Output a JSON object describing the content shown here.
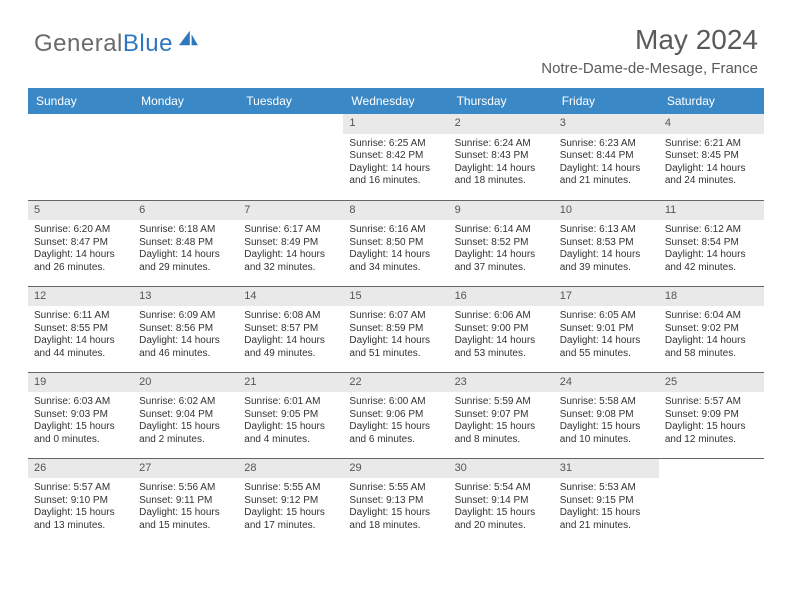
{
  "brand": {
    "part1": "General",
    "part2": "Blue"
  },
  "title": "May 2024",
  "subtitle": "Notre-Dame-de-Mesage, France",
  "colors": {
    "header_bg": "#3b88c6",
    "header_fg": "#ffffff",
    "daynum_bg": "#e9e9e9",
    "daynum_fg": "#555555",
    "body_fg": "#333333",
    "rule": "#666666",
    "brand_gray": "#6b6b6b",
    "brand_blue": "#2f78bd",
    "title_fg": "#5a5a5a"
  },
  "typography": {
    "title_fontsize": 28,
    "subtitle_fontsize": 15,
    "header_fontsize": 12,
    "daynum_fontsize": 11,
    "body_fontsize": 10
  },
  "weekdays": [
    "Sunday",
    "Monday",
    "Tuesday",
    "Wednesday",
    "Thursday",
    "Friday",
    "Saturday"
  ],
  "weeks": [
    [
      null,
      null,
      null,
      {
        "n": "1",
        "l1": "Sunrise: 6:25 AM",
        "l2": "Sunset: 8:42 PM",
        "l3": "Daylight: 14 hours",
        "l4": "and 16 minutes."
      },
      {
        "n": "2",
        "l1": "Sunrise: 6:24 AM",
        "l2": "Sunset: 8:43 PM",
        "l3": "Daylight: 14 hours",
        "l4": "and 18 minutes."
      },
      {
        "n": "3",
        "l1": "Sunrise: 6:23 AM",
        "l2": "Sunset: 8:44 PM",
        "l3": "Daylight: 14 hours",
        "l4": "and 21 minutes."
      },
      {
        "n": "4",
        "l1": "Sunrise: 6:21 AM",
        "l2": "Sunset: 8:45 PM",
        "l3": "Daylight: 14 hours",
        "l4": "and 24 minutes."
      }
    ],
    [
      {
        "n": "5",
        "l1": "Sunrise: 6:20 AM",
        "l2": "Sunset: 8:47 PM",
        "l3": "Daylight: 14 hours",
        "l4": "and 26 minutes."
      },
      {
        "n": "6",
        "l1": "Sunrise: 6:18 AM",
        "l2": "Sunset: 8:48 PM",
        "l3": "Daylight: 14 hours",
        "l4": "and 29 minutes."
      },
      {
        "n": "7",
        "l1": "Sunrise: 6:17 AM",
        "l2": "Sunset: 8:49 PM",
        "l3": "Daylight: 14 hours",
        "l4": "and 32 minutes."
      },
      {
        "n": "8",
        "l1": "Sunrise: 6:16 AM",
        "l2": "Sunset: 8:50 PM",
        "l3": "Daylight: 14 hours",
        "l4": "and 34 minutes."
      },
      {
        "n": "9",
        "l1": "Sunrise: 6:14 AM",
        "l2": "Sunset: 8:52 PM",
        "l3": "Daylight: 14 hours",
        "l4": "and 37 minutes."
      },
      {
        "n": "10",
        "l1": "Sunrise: 6:13 AM",
        "l2": "Sunset: 8:53 PM",
        "l3": "Daylight: 14 hours",
        "l4": "and 39 minutes."
      },
      {
        "n": "11",
        "l1": "Sunrise: 6:12 AM",
        "l2": "Sunset: 8:54 PM",
        "l3": "Daylight: 14 hours",
        "l4": "and 42 minutes."
      }
    ],
    [
      {
        "n": "12",
        "l1": "Sunrise: 6:11 AM",
        "l2": "Sunset: 8:55 PM",
        "l3": "Daylight: 14 hours",
        "l4": "and 44 minutes."
      },
      {
        "n": "13",
        "l1": "Sunrise: 6:09 AM",
        "l2": "Sunset: 8:56 PM",
        "l3": "Daylight: 14 hours",
        "l4": "and 46 minutes."
      },
      {
        "n": "14",
        "l1": "Sunrise: 6:08 AM",
        "l2": "Sunset: 8:57 PM",
        "l3": "Daylight: 14 hours",
        "l4": "and 49 minutes."
      },
      {
        "n": "15",
        "l1": "Sunrise: 6:07 AM",
        "l2": "Sunset: 8:59 PM",
        "l3": "Daylight: 14 hours",
        "l4": "and 51 minutes."
      },
      {
        "n": "16",
        "l1": "Sunrise: 6:06 AM",
        "l2": "Sunset: 9:00 PM",
        "l3": "Daylight: 14 hours",
        "l4": "and 53 minutes."
      },
      {
        "n": "17",
        "l1": "Sunrise: 6:05 AM",
        "l2": "Sunset: 9:01 PM",
        "l3": "Daylight: 14 hours",
        "l4": "and 55 minutes."
      },
      {
        "n": "18",
        "l1": "Sunrise: 6:04 AM",
        "l2": "Sunset: 9:02 PM",
        "l3": "Daylight: 14 hours",
        "l4": "and 58 minutes."
      }
    ],
    [
      {
        "n": "19",
        "l1": "Sunrise: 6:03 AM",
        "l2": "Sunset: 9:03 PM",
        "l3": "Daylight: 15 hours",
        "l4": "and 0 minutes."
      },
      {
        "n": "20",
        "l1": "Sunrise: 6:02 AM",
        "l2": "Sunset: 9:04 PM",
        "l3": "Daylight: 15 hours",
        "l4": "and 2 minutes."
      },
      {
        "n": "21",
        "l1": "Sunrise: 6:01 AM",
        "l2": "Sunset: 9:05 PM",
        "l3": "Daylight: 15 hours",
        "l4": "and 4 minutes."
      },
      {
        "n": "22",
        "l1": "Sunrise: 6:00 AM",
        "l2": "Sunset: 9:06 PM",
        "l3": "Daylight: 15 hours",
        "l4": "and 6 minutes."
      },
      {
        "n": "23",
        "l1": "Sunrise: 5:59 AM",
        "l2": "Sunset: 9:07 PM",
        "l3": "Daylight: 15 hours",
        "l4": "and 8 minutes."
      },
      {
        "n": "24",
        "l1": "Sunrise: 5:58 AM",
        "l2": "Sunset: 9:08 PM",
        "l3": "Daylight: 15 hours",
        "l4": "and 10 minutes."
      },
      {
        "n": "25",
        "l1": "Sunrise: 5:57 AM",
        "l2": "Sunset: 9:09 PM",
        "l3": "Daylight: 15 hours",
        "l4": "and 12 minutes."
      }
    ],
    [
      {
        "n": "26",
        "l1": "Sunrise: 5:57 AM",
        "l2": "Sunset: 9:10 PM",
        "l3": "Daylight: 15 hours",
        "l4": "and 13 minutes."
      },
      {
        "n": "27",
        "l1": "Sunrise: 5:56 AM",
        "l2": "Sunset: 9:11 PM",
        "l3": "Daylight: 15 hours",
        "l4": "and 15 minutes."
      },
      {
        "n": "28",
        "l1": "Sunrise: 5:55 AM",
        "l2": "Sunset: 9:12 PM",
        "l3": "Daylight: 15 hours",
        "l4": "and 17 minutes."
      },
      {
        "n": "29",
        "l1": "Sunrise: 5:55 AM",
        "l2": "Sunset: 9:13 PM",
        "l3": "Daylight: 15 hours",
        "l4": "and 18 minutes."
      },
      {
        "n": "30",
        "l1": "Sunrise: 5:54 AM",
        "l2": "Sunset: 9:14 PM",
        "l3": "Daylight: 15 hours",
        "l4": "and 20 minutes."
      },
      {
        "n": "31",
        "l1": "Sunrise: 5:53 AM",
        "l2": "Sunset: 9:15 PM",
        "l3": "Daylight: 15 hours",
        "l4": "and 21 minutes."
      },
      null
    ]
  ]
}
